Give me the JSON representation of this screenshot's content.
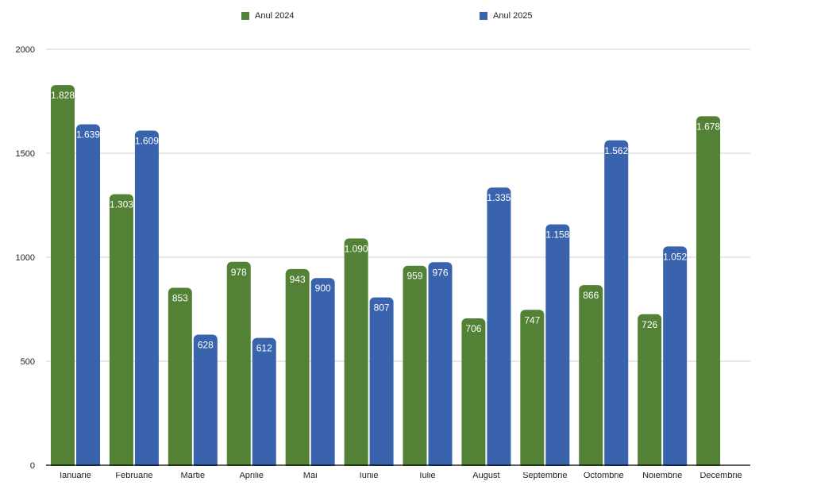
{
  "chart_data": {
    "type": "bar",
    "categories": [
      "Ianuarie",
      "Februarie",
      "Martie",
      "Aprilie",
      "Mai",
      "Iunie",
      "Iulie",
      "August",
      "Septembrie",
      "Octombrie",
      "Noiembrie",
      "Decembrie"
    ],
    "series": [
      {
        "name": "Anul 2024",
        "color": "#538135",
        "values": [
          1828,
          1303,
          853,
          978,
          943,
          1090,
          959,
          706,
          747,
          866,
          726,
          1678
        ],
        "labels": [
          "1.828",
          "1.303",
          "853",
          "978",
          "943",
          "1.090",
          "959",
          "706",
          "747",
          "866",
          "726",
          "1.678"
        ]
      },
      {
        "name": "Anul 2025",
        "color": "#3A63AE",
        "values": [
          1639,
          1609,
          628,
          612,
          900,
          807,
          976,
          1335,
          1158,
          1562,
          1052,
          null
        ],
        "labels": [
          "1.639",
          "1.609",
          "628",
          "612",
          "900",
          "807",
          "976",
          "1.335",
          "1.158",
          "1.562",
          "1.052",
          null
        ]
      }
    ],
    "yticks": [
      0,
      500,
      1000,
      1500,
      2000
    ],
    "ylim": [
      0,
      2000
    ],
    "grid": true,
    "legend_position": "top"
  }
}
